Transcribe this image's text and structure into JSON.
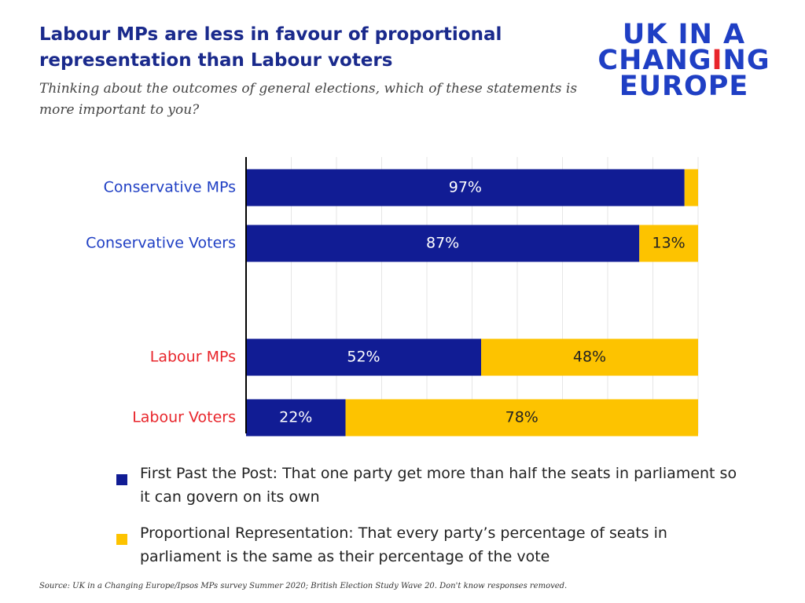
{
  "title": "Labour MPs are less in favour of proportional representation than Labour voters",
  "subtitle": "Thinking about the outcomes of general elections, which of these statements is more important to you?",
  "logo": {
    "line1": "UK IN A",
    "line2_start": "CHANG",
    "line2_mark": "I",
    "line2_end": "NG",
    "line3": "EUROPE"
  },
  "source": "Source: UK in a Changing Europe/Ipsos MPs survey Summer 2020;  British Election Study Wave 20. Don't know responses removed.",
  "chart_data": {
    "type": "stacked-barh",
    "categories": [
      "Conservative MPs",
      "Conservative Voters",
      "Labour MPs",
      "Labour Voters"
    ],
    "category_colors": [
      "#1f3fc4",
      "#1f3fc4",
      "#e8252b",
      "#e8252b"
    ],
    "series": [
      {
        "name": "First Past the Post: That one party get more than half the seats in parliament so it can govern on its own",
        "color": "#111c94",
        "values": [
          97,
          87,
          52,
          22
        ],
        "value_labels": [
          "97%",
          "87%",
          "52%",
          "22%"
        ]
      },
      {
        "name": "Proportional Representation: That every party’s percentage of seats in parliament is the same as their percentage of the vote",
        "color": "#fdc300",
        "values": [
          3,
          13,
          48,
          78
        ],
        "value_labels": [
          null,
          "13%",
          "48%",
          "78%"
        ]
      }
    ],
    "xlim": [
      0,
      100
    ],
    "xticks": [
      0,
      10,
      20,
      30,
      40,
      50,
      60,
      70,
      80,
      90,
      100
    ],
    "tick_labels": false,
    "grid": true
  }
}
